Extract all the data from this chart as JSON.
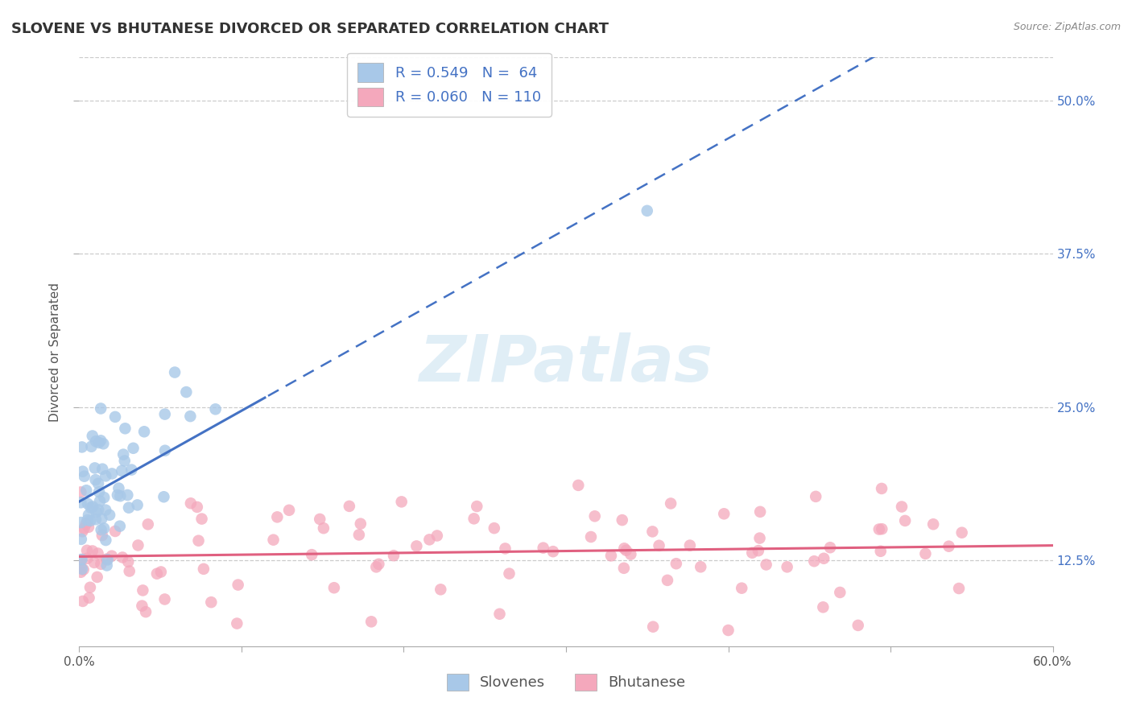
{
  "title": "SLOVENE VS BHUTANESE DIVORCED OR SEPARATED CORRELATION CHART",
  "source_text": "Source: ZipAtlas.com",
  "ylabel": "Divorced or Separated",
  "xlim": [
    0.0,
    0.6
  ],
  "ylim": [
    0.055,
    0.535
  ],
  "ytick_labels_right": [
    "12.5%",
    "25.0%",
    "37.5%",
    "50.0%"
  ],
  "yticks_right": [
    0.125,
    0.25,
    0.375,
    0.5
  ],
  "watermark": "ZIPatlas",
  "slovene_R": 0.549,
  "slovene_N": 64,
  "bhutanese_R": 0.06,
  "bhutanese_N": 110,
  "slovene_color": "#a8c8e8",
  "slovene_line_color": "#4472c4",
  "bhutanese_color": "#f4a8bc",
  "bhutanese_line_color": "#e06080",
  "background_color": "#ffffff",
  "grid_color": "#cccccc",
  "title_fontsize": 13,
  "axis_label_fontsize": 11,
  "tick_fontsize": 11,
  "legend_fontsize": 13
}
